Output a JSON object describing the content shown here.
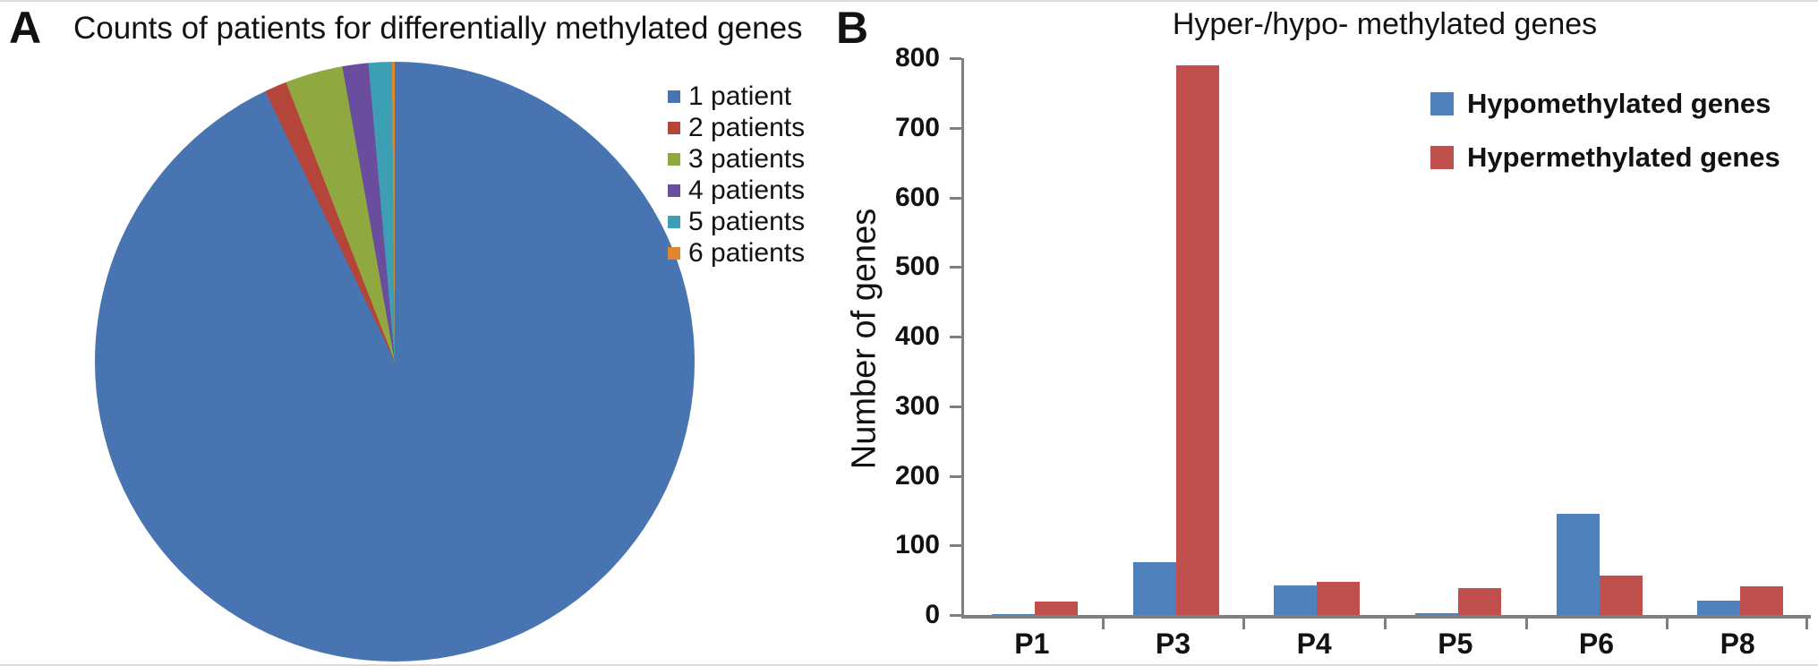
{
  "panel_a": {
    "label": "A"
  },
  "panel_b": {
    "label": "B"
  },
  "chart_data": [
    {
      "type": "pie",
      "title": "Counts of patients for differentially methylated genes",
      "labels": [
        "1 patient",
        "2 patients",
        "3 patients",
        "4 patients",
        "5 patients",
        "6 patients"
      ],
      "values_percent": [
        92.89,
        1.2,
        3.11,
        1.4,
        1.25,
        0.15
      ],
      "colors": [
        "#4875B2",
        "#B5453B",
        "#90A840",
        "#6B4D9E",
        "#3D9FB3",
        "#E0862D"
      ],
      "start_angle_deg": 0,
      "direction": "clockwise",
      "legend_position": "right"
    },
    {
      "type": "bar",
      "title": "Hyper-/hypo- methylated genes",
      "categories": [
        "P1",
        "P3",
        "P4",
        "P5",
        "P6",
        "P8"
      ],
      "series": [
        {
          "name": "Hypomethylated genes",
          "color": "#4F81BD",
          "values": [
            1,
            76,
            42,
            3,
            145,
            20
          ]
        },
        {
          "name": "Hypermethylated genes",
          "color": "#C0504D",
          "values": [
            19,
            790,
            48,
            38,
            57,
            41
          ]
        }
      ],
      "ylabel": "Number of genes",
      "ylim": [
        0,
        800
      ],
      "ytick_step": 100,
      "grid": false,
      "axis_color": "#7f7f7f",
      "legend_position": "upper right"
    }
  ]
}
